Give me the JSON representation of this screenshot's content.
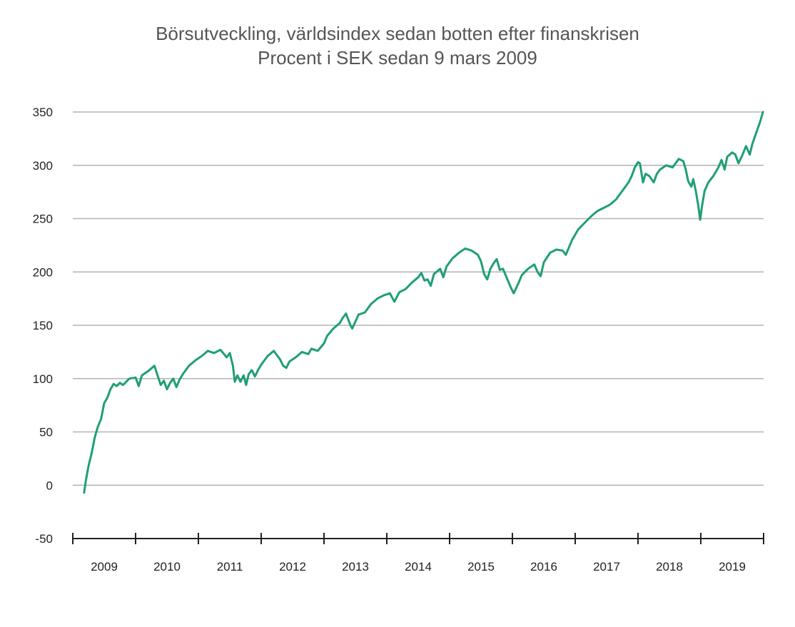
{
  "chart_data": {
    "type": "line",
    "title": "Börsutveckling, världsindex sedan botten efter finanskrisen",
    "subtitle": "Procent i SEK sedan 9 mars 2009",
    "xlabel": "",
    "ylabel": "",
    "ylim": [
      -50,
      350
    ],
    "yticks": [
      -50,
      0,
      50,
      100,
      150,
      200,
      250,
      300,
      350
    ],
    "ytick_labels": [
      "-50",
      "0",
      "50",
      "100",
      "150",
      "200",
      "250",
      "300",
      "350"
    ],
    "xlim": [
      2009.0,
      2020.0
    ],
    "xtick_labels": [
      "2009",
      "2010",
      "2011",
      "2012",
      "2013",
      "2014",
      "2015",
      "2016",
      "2017",
      "2018",
      "2019"
    ],
    "grid": true,
    "line_color": "#1f9e78",
    "grid_color": "#b3b3b3",
    "series": [
      {
        "values": [
          [
            2009.18,
            -7
          ],
          [
            2009.21,
            5
          ],
          [
            2009.25,
            18
          ],
          [
            2009.3,
            30
          ],
          [
            2009.35,
            45
          ],
          [
            2009.4,
            55
          ],
          [
            2009.45,
            62
          ],
          [
            2009.5,
            77
          ],
          [
            2009.55,
            82
          ],
          [
            2009.6,
            90
          ],
          [
            2009.65,
            95
          ],
          [
            2009.7,
            93
          ],
          [
            2009.75,
            96
          ],
          [
            2009.8,
            94
          ],
          [
            2009.85,
            97
          ],
          [
            2009.9,
            100
          ],
          [
            2010.0,
            101
          ],
          [
            2010.05,
            93
          ],
          [
            2010.1,
            103
          ],
          [
            2010.2,
            107
          ],
          [
            2010.3,
            112
          ],
          [
            2010.35,
            103
          ],
          [
            2010.4,
            94
          ],
          [
            2010.45,
            98
          ],
          [
            2010.5,
            90
          ],
          [
            2010.55,
            96
          ],
          [
            2010.6,
            100
          ],
          [
            2010.65,
            92
          ],
          [
            2010.7,
            99
          ],
          [
            2010.75,
            104
          ],
          [
            2010.85,
            112
          ],
          [
            2010.95,
            117
          ],
          [
            2011.05,
            121
          ],
          [
            2011.15,
            126
          ],
          [
            2011.25,
            124
          ],
          [
            2011.35,
            127
          ],
          [
            2011.45,
            120
          ],
          [
            2011.5,
            124
          ],
          [
            2011.55,
            112
          ],
          [
            2011.58,
            97
          ],
          [
            2011.62,
            103
          ],
          [
            2011.67,
            97
          ],
          [
            2011.72,
            103
          ],
          [
            2011.76,
            94
          ],
          [
            2011.8,
            104
          ],
          [
            2011.85,
            108
          ],
          [
            2011.9,
            102
          ],
          [
            2011.95,
            108
          ],
          [
            2012.0,
            113
          ],
          [
            2012.1,
            121
          ],
          [
            2012.2,
            126
          ],
          [
            2012.3,
            118
          ],
          [
            2012.35,
            112
          ],
          [
            2012.4,
            110
          ],
          [
            2012.45,
            116
          ],
          [
            2012.55,
            120
          ],
          [
            2012.65,
            125
          ],
          [
            2012.75,
            123
          ],
          [
            2012.8,
            128
          ],
          [
            2012.9,
            126
          ],
          [
            2013.0,
            133
          ],
          [
            2013.05,
            140
          ],
          [
            2013.15,
            147
          ],
          [
            2013.25,
            152
          ],
          [
            2013.3,
            157
          ],
          [
            2013.35,
            161
          ],
          [
            2013.42,
            150
          ],
          [
            2013.45,
            147
          ],
          [
            2013.55,
            160
          ],
          [
            2013.65,
            162
          ],
          [
            2013.75,
            170
          ],
          [
            2013.85,
            175
          ],
          [
            2013.95,
            178
          ],
          [
            2014.05,
            180
          ],
          [
            2014.12,
            172
          ],
          [
            2014.2,
            181
          ],
          [
            2014.3,
            184
          ],
          [
            2014.4,
            190
          ],
          [
            2014.5,
            195
          ],
          [
            2014.55,
            199
          ],
          [
            2014.6,
            192
          ],
          [
            2014.65,
            193
          ],
          [
            2014.7,
            187
          ],
          [
            2014.75,
            198
          ],
          [
            2014.85,
            203
          ],
          [
            2014.9,
            195
          ],
          [
            2014.95,
            205
          ],
          [
            2015.05,
            213
          ],
          [
            2015.15,
            218
          ],
          [
            2015.25,
            222
          ],
          [
            2015.35,
            220
          ],
          [
            2015.45,
            216
          ],
          [
            2015.5,
            210
          ],
          [
            2015.55,
            198
          ],
          [
            2015.6,
            193
          ],
          [
            2015.65,
            203
          ],
          [
            2015.7,
            208
          ],
          [
            2015.75,
            212
          ],
          [
            2015.8,
            202
          ],
          [
            2015.85,
            203
          ],
          [
            2015.92,
            193
          ],
          [
            2015.97,
            186
          ],
          [
            2016.02,
            180
          ],
          [
            2016.1,
            190
          ],
          [
            2016.15,
            197
          ],
          [
            2016.25,
            203
          ],
          [
            2016.35,
            207
          ],
          [
            2016.4,
            200
          ],
          [
            2016.45,
            196
          ],
          [
            2016.5,
            209
          ],
          [
            2016.6,
            218
          ],
          [
            2016.7,
            221
          ],
          [
            2016.8,
            220
          ],
          [
            2016.85,
            216
          ],
          [
            2016.9,
            223
          ],
          [
            2016.95,
            230
          ],
          [
            2017.05,
            240
          ],
          [
            2017.15,
            246
          ],
          [
            2017.25,
            252
          ],
          [
            2017.35,
            257
          ],
          [
            2017.45,
            260
          ],
          [
            2017.55,
            263
          ],
          [
            2017.65,
            268
          ],
          [
            2017.75,
            276
          ],
          [
            2017.85,
            284
          ],
          [
            2017.9,
            290
          ],
          [
            2017.95,
            298
          ],
          [
            2018.0,
            303
          ],
          [
            2018.03,
            302
          ],
          [
            2018.08,
            284
          ],
          [
            2018.12,
            292
          ],
          [
            2018.18,
            290
          ],
          [
            2018.25,
            284
          ],
          [
            2018.3,
            292
          ],
          [
            2018.35,
            296
          ],
          [
            2018.45,
            300
          ],
          [
            2018.55,
            298
          ],
          [
            2018.65,
            306
          ],
          [
            2018.72,
            304
          ],
          [
            2018.76,
            296
          ],
          [
            2018.8,
            285
          ],
          [
            2018.85,
            280
          ],
          [
            2018.88,
            287
          ],
          [
            2018.92,
            276
          ],
          [
            2018.96,
            262
          ],
          [
            2018.99,
            249
          ],
          [
            2019.02,
            262
          ],
          [
            2019.06,
            276
          ],
          [
            2019.12,
            284
          ],
          [
            2019.2,
            290
          ],
          [
            2019.28,
            298
          ],
          [
            2019.33,
            305
          ],
          [
            2019.38,
            296
          ],
          [
            2019.42,
            308
          ],
          [
            2019.5,
            312
          ],
          [
            2019.55,
            310
          ],
          [
            2019.6,
            302
          ],
          [
            2019.65,
            308
          ],
          [
            2019.72,
            318
          ],
          [
            2019.78,
            310
          ],
          [
            2019.82,
            320
          ],
          [
            2019.88,
            330
          ],
          [
            2019.94,
            340
          ],
          [
            2019.99,
            350
          ]
        ]
      }
    ]
  }
}
